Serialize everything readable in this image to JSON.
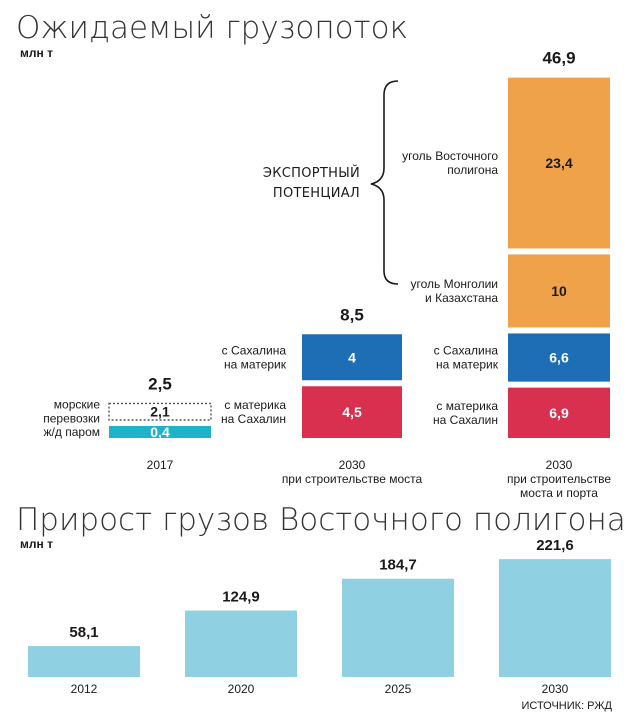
{
  "colors": {
    "orange": "#f0a24b",
    "blue": "#1e6eb5",
    "red": "#d8304e",
    "cyan": "#1fb3c9",
    "light_blue": "#8fd0e2",
    "dotted": "#555555"
  },
  "chart1": {
    "title": "Ожидаемый грузопоток",
    "unit": "млн т",
    "bracket_label": [
      "ЭКСПОРТНЫЙ",
      "ПОТЕНЦИАЛ"
    ],
    "columns": [
      {
        "key": "c2017",
        "total": "2,5",
        "x_label": [
          "2017"
        ],
        "segments": [
          {
            "label": [
              "ж/д паром"
            ],
            "value": 0.4,
            "display": "0,4",
            "style": "cyan"
          },
          {
            "label": [
              "морские",
              "перевозки"
            ],
            "value": 2.1,
            "display": "2,1",
            "style": "dotted"
          }
        ]
      },
      {
        "key": "c2030a",
        "total": "8,5",
        "x_label": [
          "2030",
          "при строительстве моста"
        ],
        "segments": [
          {
            "label": [
              "с материка",
              "на Сахалин"
            ],
            "value": 4.5,
            "display": "4,5",
            "style": "red"
          },
          {
            "label": [
              "с Сахалина",
              "на материк"
            ],
            "value": 4,
            "display": "4",
            "style": "blue"
          }
        ]
      },
      {
        "key": "c2030b",
        "total": "46,9",
        "x_label": [
          "2030",
          "при строительстве",
          "моста и порта"
        ],
        "segments": [
          {
            "label": [
              "с материка",
              "на Сахалин"
            ],
            "value": 6.9,
            "display": "6,9",
            "style": "red"
          },
          {
            "label": [
              "с Сахалина",
              "на материк"
            ],
            "value": 6.6,
            "display": "6,6",
            "style": "blue"
          },
          {
            "label": [
              "уголь Монголии",
              "и Казахстана"
            ],
            "value": 10,
            "display": "10",
            "style": "orange"
          },
          {
            "label": [
              "уголь Восточного",
              "полигона"
            ],
            "value": 23.4,
            "display": "23,4",
            "style": "orange"
          }
        ]
      }
    ]
  },
  "chart_data": [
    {
      "type": "bar",
      "stacked": true,
      "title": "Ожидаемый грузопоток",
      "ylabel": "млн т",
      "categories": [
        "2017",
        "2030 при строительстве моста",
        "2030 при строительстве моста и порта"
      ],
      "totals": [
        2.5,
        8.5,
        46.9
      ],
      "series": [
        {
          "name": "ж/д паром",
          "values": [
            0.4,
            null,
            null
          ]
        },
        {
          "name": "морские перевозки",
          "values": [
            2.1,
            null,
            null
          ]
        },
        {
          "name": "с материка на Сахалин",
          "values": [
            null,
            4.5,
            6.9
          ]
        },
        {
          "name": "с Сахалина на материк",
          "values": [
            null,
            4,
            6.6
          ]
        },
        {
          "name": "уголь Монголии и Казахстана",
          "values": [
            null,
            null,
            10
          ]
        },
        {
          "name": "уголь Восточного полигона",
          "values": [
            null,
            null,
            23.4
          ]
        }
      ],
      "annotations": [
        "ЭКСПОРТНЫЙ ПОТЕНЦИАЛ"
      ]
    },
    {
      "type": "bar",
      "title": "Прирост грузов Восточного полигона",
      "ylabel": "млн т",
      "categories": [
        "2012",
        "2020",
        "2025",
        "2030"
      ],
      "values": [
        58.1,
        124.9,
        184.7,
        221.6
      ],
      "value_labels": [
        "58,1",
        "124,9",
        "184,7",
        "221,6"
      ]
    }
  ],
  "chart2": {
    "title": "Прирост грузов Восточного полигона",
    "unit": "млн т",
    "source": "ИСТОЧНИК: РЖД"
  }
}
